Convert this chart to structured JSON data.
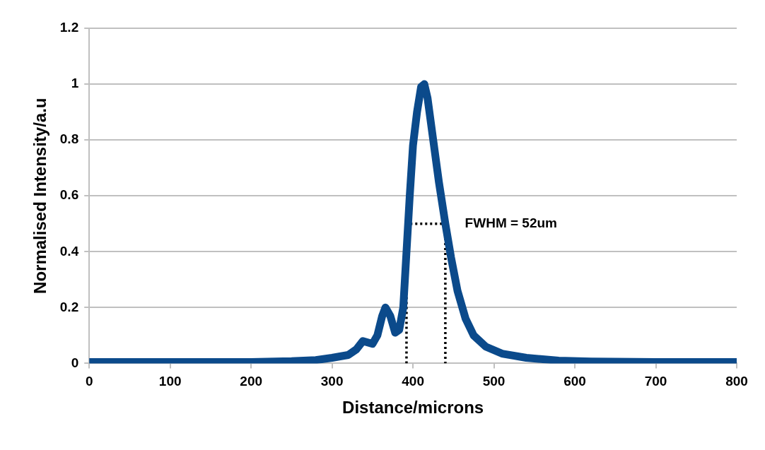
{
  "chart_data": {
    "type": "line",
    "xlabel": "Distance/microns",
    "ylabel": "Normalised Intensity/a.u",
    "xlim": [
      0,
      800
    ],
    "xticks": [
      0,
      100,
      200,
      300,
      400,
      500,
      600,
      700,
      800
    ],
    "ylim": [
      0,
      1.2
    ],
    "yticks": [
      0,
      0.2,
      0.4,
      0.6,
      0.8,
      1,
      1.2
    ],
    "grid": "y",
    "legend": false,
    "marker": "none",
    "series": [
      {
        "color": "#0b4a8b",
        "line_style": "solid",
        "x": [
          0,
          50,
          100,
          150,
          200,
          250,
          280,
          300,
          320,
          330,
          338,
          350,
          356,
          362,
          366,
          372,
          378,
          383,
          388,
          392,
          396,
          400,
          405,
          410,
          414,
          418,
          425,
          432,
          440,
          447,
          455,
          465,
          475,
          490,
          510,
          540,
          580,
          620,
          700,
          750,
          800
        ],
        "values": [
          0.005,
          0.005,
          0.005,
          0.005,
          0.005,
          0.008,
          0.012,
          0.02,
          0.03,
          0.05,
          0.08,
          0.07,
          0.1,
          0.17,
          0.2,
          0.17,
          0.11,
          0.12,
          0.2,
          0.4,
          0.6,
          0.78,
          0.9,
          0.99,
          1.0,
          0.95,
          0.8,
          0.65,
          0.5,
          0.38,
          0.26,
          0.16,
          0.1,
          0.06,
          0.035,
          0.02,
          0.01,
          0.007,
          0.005,
          0.005,
          0.005
        ]
      },
      {
        "color": "#000000",
        "line_style": "dotted",
        "x": [
          392,
          392,
          440,
          440
        ],
        "values": [
          0,
          0.5,
          0.5,
          0
        ]
      }
    ],
    "annotations": [
      {
        "text": "FWHM = 52um",
        "x": 445,
        "y": 0.5
      }
    ]
  }
}
